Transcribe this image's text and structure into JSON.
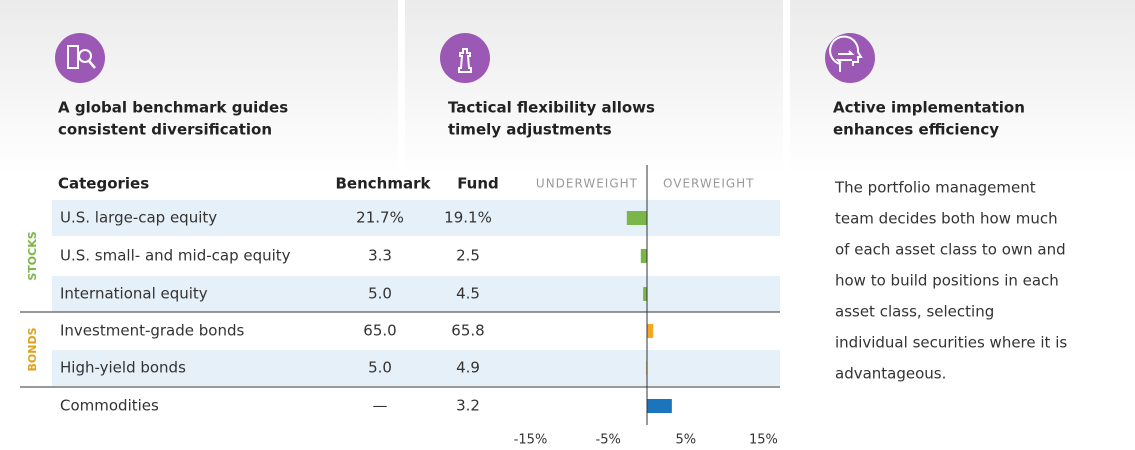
{
  "panels": [
    {
      "title_lines": [
        "A global benchmark guides",
        "consistent diversification"
      ]
    },
    {
      "title_lines": [
        "Tactical flexibility allows",
        "timely adjustments"
      ]
    },
    {
      "title_lines": [
        "Active implementation",
        "enhances efficiency"
      ]
    }
  ],
  "table": {
    "headers": [
      "Categories",
      "Benchmark",
      "Fund"
    ],
    "groups": [
      {
        "label": "STOCKS",
        "color": "#7ab648"
      },
      {
        "label": "BONDS",
        "color": "#e0a21c"
      }
    ],
    "rows": [
      [
        "U.S. large-cap equity",
        "21.7%",
        "19.1%"
      ],
      [
        "U.S. small- and mid-cap equity",
        "3.3",
        "2.5"
      ],
      [
        "International equity",
        "5.0",
        "4.5"
      ],
      [
        "Investment-grade bonds",
        "65.0",
        "65.8"
      ],
      [
        "High-yield bonds",
        "5.0",
        "4.9"
      ],
      [
        "Commodities",
        "—",
        "3.2"
      ]
    ]
  },
  "chart_data": {
    "type": "bar",
    "orientation": "horizontal",
    "headers": [
      "UNDERWEIGHT",
      "OVERWEIGHT"
    ],
    "values": [
      -2.6,
      -0.8,
      -0.5,
      0.8,
      -0.1,
      3.2
    ],
    "colors": [
      "#7ab648",
      "#7ab648",
      "#7ab648",
      "#f5a623",
      "#f5a623",
      "#1b75bc"
    ],
    "xlim": [
      -17,
      17
    ],
    "xticks": [
      {
        "value": -15,
        "label": "-15%"
      },
      {
        "value": -5,
        "label": "-5%"
      },
      {
        "value": 5,
        "label": "5%"
      },
      {
        "value": 15,
        "label": "15%"
      }
    ]
  },
  "description": {
    "lines": [
      "The portfolio management",
      "team decides both how much",
      "of each asset class to own and",
      "how to build positions in each",
      "asset class, selecting",
      "individual securities where it is",
      "advantageous."
    ]
  }
}
